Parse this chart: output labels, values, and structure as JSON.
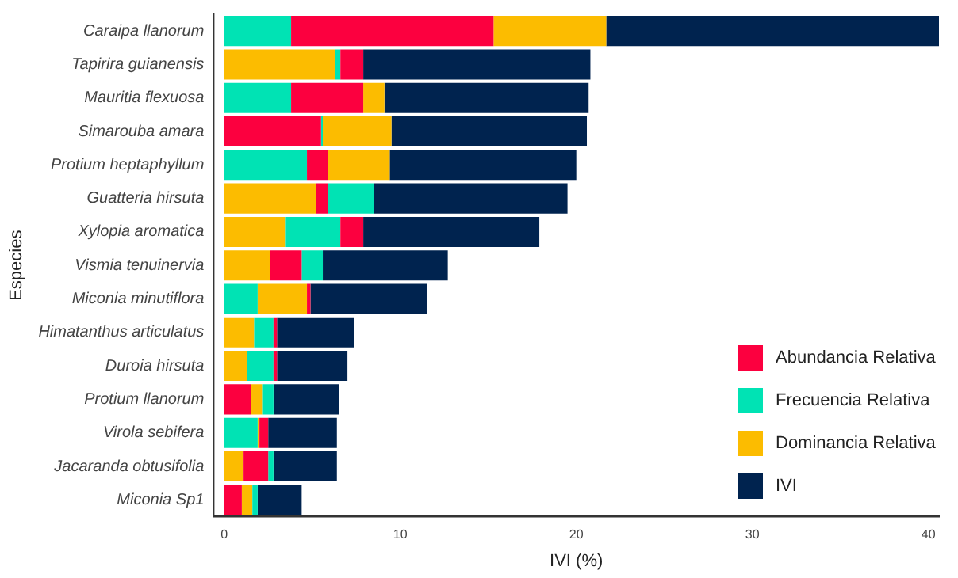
{
  "chart_data": {
    "type": "bar",
    "orientation": "horizontal",
    "xlabel": "IVI (%)",
    "ylabel": "Especies",
    "categories": [
      "Caraipa llanorum",
      "Tapirira guianensis",
      "Mauritia flexuosa",
      "Simarouba amara",
      "Protium heptaphyllum",
      "Guatteria hirsuta",
      "Xylopia aromatica",
      "Vismia tenuinervia",
      "Miconia minutiflora",
      "Himatanthus articulatus",
      "Duroia hirsuta",
      "Protium llanorum",
      "Virola sebifera",
      "Jacaranda obtusifolia",
      "Miconia Sp1"
    ],
    "xlim": [
      -0.6,
      40.6
    ],
    "xticks": [
      0,
      10,
      20,
      30,
      40
    ],
    "grid": false,
    "legend": "bottom right",
    "series": [
      {
        "name": "Abundancia Relativa",
        "color": "#fc003f",
        "base": [
          3.8,
          6.6,
          3.8,
          0,
          4.7,
          5.2,
          6.6,
          2.6,
          4.7,
          2.8,
          2.8,
          0,
          2.0,
          1.1,
          0
        ],
        "values": [
          11.5,
          1.3,
          4.1,
          5.5,
          1.2,
          0.7,
          1.3,
          1.8,
          0.2,
          0.2,
          0.2,
          1.5,
          0.5,
          1.4,
          1.0
        ]
      },
      {
        "name": "Frecuencia Relativa",
        "color": "#00e3b4",
        "base": [
          0,
          6.3,
          0,
          5.5,
          0,
          5.9,
          3.5,
          4.4,
          0,
          1.7,
          1.3,
          2.2,
          0,
          2.5,
          1.6
        ],
        "values": [
          3.8,
          0.3,
          3.8,
          0.1,
          4.7,
          2.6,
          3.1,
          1.2,
          1.9,
          1.1,
          1.5,
          0.6,
          1.9,
          0.3,
          0.3
        ]
      },
      {
        "name": "Dominancia Relativa",
        "color": "#fcbc00",
        "base": [
          15.3,
          0,
          7.9,
          5.6,
          5.9,
          0,
          0,
          0,
          1.9,
          0,
          0,
          1.5,
          1.9,
          0,
          1.0
        ],
        "values": [
          6.4,
          6.3,
          1.2,
          3.9,
          3.5,
          5.2,
          3.5,
          2.6,
          2.8,
          1.7,
          1.3,
          0.7,
          0.1,
          1.1,
          0.6
        ]
      },
      {
        "name": "IVI",
        "color": "#00234f",
        "base": [
          21.7,
          7.9,
          9.1,
          9.5,
          9.4,
          8.5,
          7.9,
          5.6,
          4.9,
          3.0,
          3.0,
          2.8,
          2.5,
          2.8,
          1.9
        ],
        "values": [
          18.9,
          12.9,
          11.6,
          11.1,
          10.6,
          11.0,
          10.0,
          7.1,
          6.6,
          4.4,
          4.0,
          3.7,
          3.9,
          3.6,
          2.5
        ]
      }
    ]
  }
}
